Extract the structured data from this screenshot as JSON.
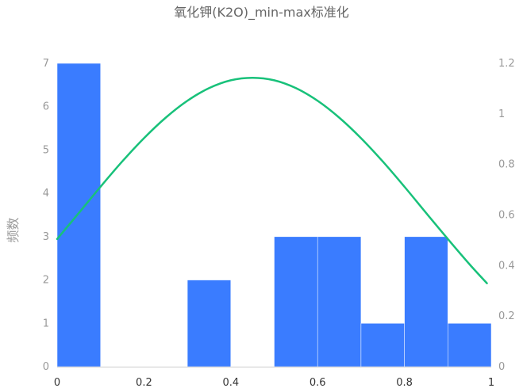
{
  "chart_data": {
    "type": "bar",
    "title": "氧化钾(K2O)_min-max标准化",
    "ylabel": "频数",
    "xlim": [
      0,
      1
    ],
    "ylim": [
      0,
      7
    ],
    "y2lim": [
      0,
      1.2
    ],
    "x_ticks": [
      "0",
      "0.2",
      "0.4",
      "0.6",
      "0.8",
      "1"
    ],
    "y_ticks": [
      "0",
      "1",
      "2",
      "3",
      "4",
      "5",
      "6",
      "7"
    ],
    "y2_ticks": [
      "0",
      "0.2",
      "0.4",
      "0.6",
      "0.8",
      "1",
      "1.2"
    ],
    "bins": [
      {
        "x0": 0.0,
        "x1": 0.1,
        "value": 7
      },
      {
        "x0": 0.1,
        "x1": 0.2,
        "value": 0
      },
      {
        "x0": 0.2,
        "x1": 0.3,
        "value": 0
      },
      {
        "x0": 0.3,
        "x1": 0.4,
        "value": 2
      },
      {
        "x0": 0.4,
        "x1": 0.5,
        "value": 0
      },
      {
        "x0": 0.5,
        "x1": 0.6,
        "value": 3
      },
      {
        "x0": 0.6,
        "x1": 0.7,
        "value": 3
      },
      {
        "x0": 0.7,
        "x1": 0.8,
        "value": 1
      },
      {
        "x0": 0.8,
        "x1": 0.9,
        "value": 3
      },
      {
        "x0": 0.9,
        "x1": 1.0,
        "value": 1
      }
    ],
    "density_curve": {
      "axis": "right",
      "x": [
        0,
        0.05,
        0.1,
        0.15,
        0.2,
        0.25,
        0.3,
        0.35,
        0.4,
        0.45,
        0.5,
        0.55,
        0.6,
        0.65,
        0.7,
        0.75,
        0.8,
        0.85,
        0.9,
        0.95,
        0.99
      ],
      "y": [
        0.505,
        0.608,
        0.712,
        0.812,
        0.904,
        0.985,
        1.052,
        1.102,
        1.133,
        1.143,
        1.133,
        1.102,
        1.052,
        0.985,
        0.904,
        0.812,
        0.712,
        0.608,
        0.505,
        0.405,
        0.33
      ]
    },
    "colors": {
      "bar": "#3a7cff",
      "curve": "#18c17a",
      "axis": "#cccccc"
    }
  }
}
